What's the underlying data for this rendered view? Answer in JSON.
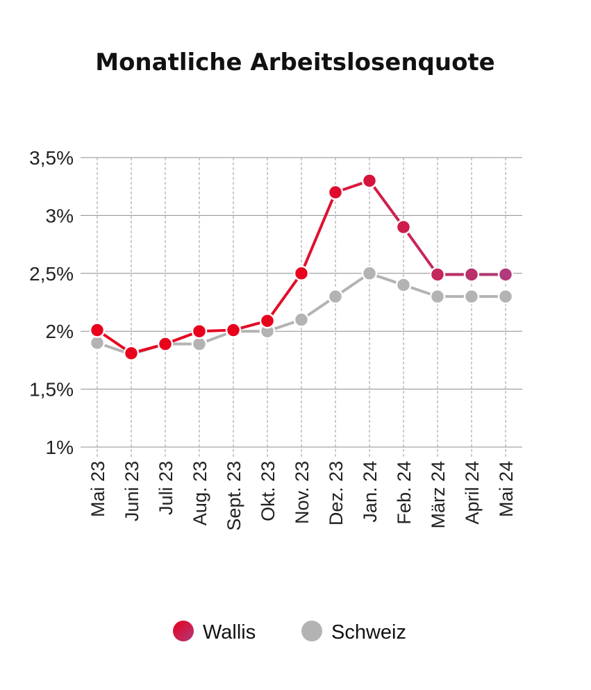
{
  "chart_data": {
    "type": "line",
    "title": "Monatliche Arbeitslosenquote",
    "xlabel": "",
    "ylabel": "",
    "categories": [
      "Mai 23",
      "Juni 23",
      "Juli 23",
      "Aug. 23",
      "Sept. 23",
      "Okt. 23",
      "Nov. 23",
      "Dez. 23",
      "Jan. 24",
      "Feb. 24",
      "März 24",
      "April 24",
      "Mai 24"
    ],
    "ylim": [
      1,
      3.5
    ],
    "yticks": [
      1,
      1.5,
      2,
      2.5,
      3,
      3.5
    ],
    "ytick_labels": [
      "1%",
      "1,5%",
      "2%",
      "2,5%",
      "3%",
      "3,5%"
    ],
    "grid": {
      "horizontal": "solid",
      "vertical": "dashed"
    },
    "legend_position": "bottom-center",
    "series": [
      {
        "name": "Wallis",
        "values": [
          2.01,
          1.81,
          1.89,
          2.0,
          2.01,
          2.09,
          2.5,
          3.2,
          3.3,
          2.9,
          2.49,
          2.49,
          2.49
        ],
        "color_start": "#e8001c",
        "color_end": "#b03a7a"
      },
      {
        "name": "Schweiz",
        "values": [
          1.9,
          1.8,
          1.89,
          1.89,
          2.0,
          2.0,
          2.1,
          2.3,
          2.5,
          2.4,
          2.3,
          2.3,
          2.3
        ],
        "color": "#b3b3b3"
      }
    ]
  }
}
